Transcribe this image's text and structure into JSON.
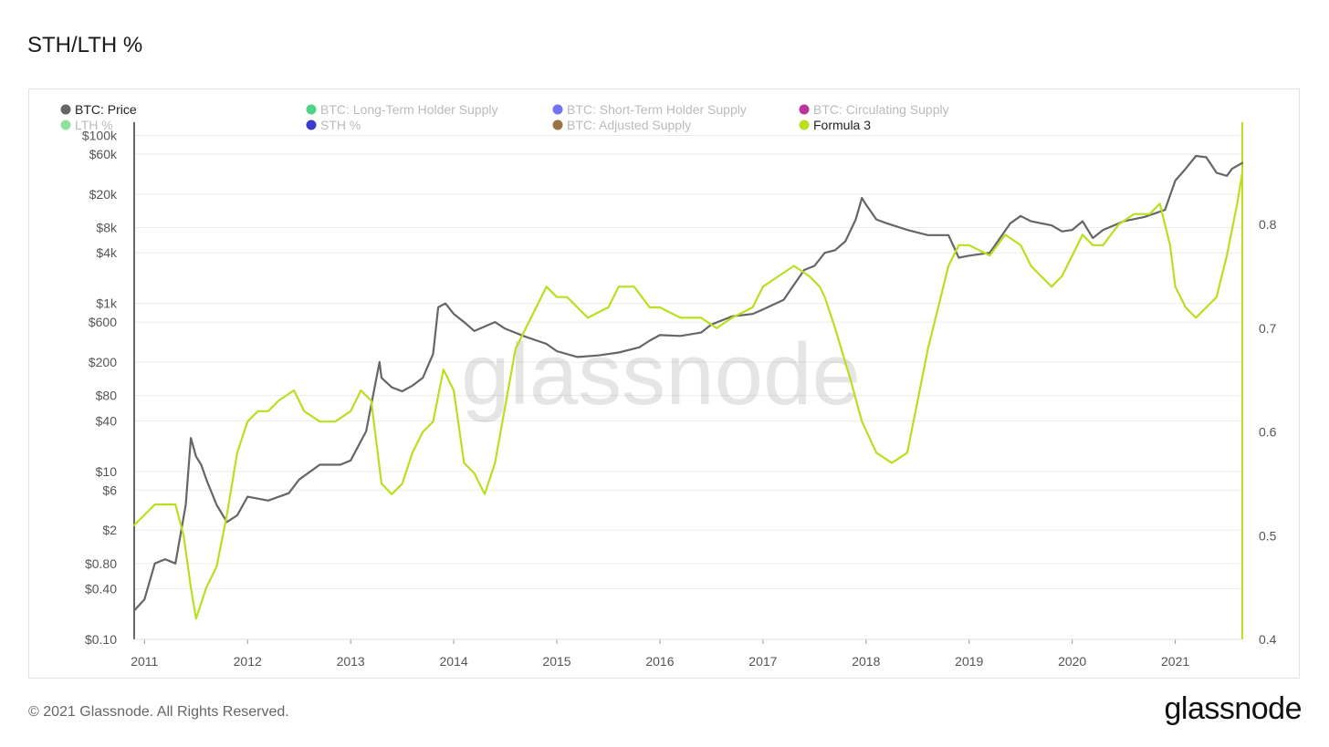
{
  "page": {
    "title": "STH/LTH %",
    "copyright": "© 2021 Glassnode. All Rights Reserved.",
    "logo_text": "glassnode",
    "watermark": "glassnode"
  },
  "chart_data": {
    "type": "line",
    "title": "STH/LTH %",
    "legend": {
      "placement": "top",
      "items": [
        {
          "label": "BTC: Price",
          "color": "#666666",
          "active": true
        },
        {
          "label": "BTC: Long-Term Holder Supply",
          "color": "#2ecc71",
          "active": false
        },
        {
          "label": "BTC: Short-Term Holder Supply",
          "color": "#5b5bf0",
          "active": false
        },
        {
          "label": "BTC: Circulating Supply",
          "color": "#b0108a",
          "active": false
        },
        {
          "label": "LTH %",
          "color": "#7ddc8a",
          "active": false
        },
        {
          "label": "STH %",
          "color": "#1a1ac8",
          "active": false
        },
        {
          "label": "BTC: Adjusted Supply",
          "color": "#8a5a1e",
          "active": false
        },
        {
          "label": "Formula 3",
          "color": "#b8e01f",
          "active": true
        }
      ]
    },
    "x_axis": {
      "ticks": [
        "2011",
        "2012",
        "2013",
        "2014",
        "2015",
        "2016",
        "2017",
        "2018",
        "2019",
        "2020",
        "2021"
      ],
      "range": [
        2010.9,
        2021.65
      ]
    },
    "y_left": {
      "scale": "log",
      "range": [
        0.1,
        130000
      ],
      "tick_values": [
        0.1,
        0.4,
        0.8,
        2,
        6,
        10,
        40,
        80,
        200,
        600,
        1000,
        4000,
        8000,
        20000,
        60000,
        100000
      ],
      "tick_labels": [
        "$0.10",
        "$0.40",
        "$0.80",
        "$2",
        "$6",
        "$10",
        "$40",
        "$80",
        "$200",
        "$600",
        "$1k",
        "$4k",
        "$8k",
        "$20k",
        "$60k",
        "$100k"
      ]
    },
    "y_right": {
      "scale": "linear",
      "range": [
        0.4,
        0.895
      ],
      "tick_values": [
        0.4,
        0.5,
        0.6,
        0.7,
        0.8
      ],
      "tick_labels": [
        "0.4",
        "0.5",
        "0.6",
        "0.7",
        "0.8"
      ]
    },
    "grid": true,
    "series": [
      {
        "name": "BTC: Price",
        "axis": "left",
        "color": "#666666",
        "x": [
          2010.9,
          2011.0,
          2011.1,
          2011.2,
          2011.3,
          2011.4,
          2011.45,
          2011.5,
          2011.55,
          2011.6,
          2011.7,
          2011.8,
          2011.9,
          2012.0,
          2012.2,
          2012.4,
          2012.5,
          2012.7,
          2012.9,
          2013.0,
          2013.15,
          2013.28,
          2013.3,
          2013.4,
          2013.5,
          2013.6,
          2013.7,
          2013.8,
          2013.85,
          2013.92,
          2014.0,
          2014.1,
          2014.2,
          2014.4,
          2014.5,
          2014.7,
          2014.9,
          2015.0,
          2015.2,
          2015.4,
          2015.6,
          2015.8,
          2015.9,
          2016.0,
          2016.2,
          2016.4,
          2016.5,
          2016.7,
          2016.9,
          2017.0,
          2017.2,
          2017.4,
          2017.5,
          2017.6,
          2017.7,
          2017.8,
          2017.9,
          2017.96,
          2018.0,
          2018.1,
          2018.2,
          2018.4,
          2018.6,
          2018.8,
          2018.9,
          2019.0,
          2019.2,
          2019.4,
          2019.5,
          2019.6,
          2019.8,
          2019.9,
          2020.0,
          2020.1,
          2020.2,
          2020.3,
          2020.5,
          2020.7,
          2020.9,
          2021.0,
          2021.1,
          2021.2,
          2021.3,
          2021.4,
          2021.5,
          2021.55,
          2021.65
        ],
        "y": [
          0.22,
          0.3,
          0.8,
          0.9,
          0.8,
          4,
          25,
          15,
          12,
          8,
          4,
          2.5,
          3,
          5,
          4.5,
          5.5,
          8,
          12,
          12,
          13.5,
          30,
          200,
          130,
          100,
          90,
          105,
          130,
          250,
          900,
          1000,
          750,
          600,
          470,
          600,
          500,
          400,
          330,
          270,
          230,
          240,
          260,
          300,
          360,
          420,
          410,
          450,
          560,
          700,
          750,
          850,
          1100,
          2500,
          2800,
          4000,
          4300,
          5500,
          10000,
          18000,
          15000,
          10000,
          9000,
          7500,
          6500,
          6500,
          3500,
          3700,
          4000,
          9000,
          11000,
          9500,
          8500,
          7200,
          7500,
          9500,
          6000,
          7500,
          9500,
          10700,
          13000,
          29000,
          40000,
          57000,
          55000,
          36000,
          33000,
          40000,
          47000
        ]
      },
      {
        "name": "Formula 3",
        "axis": "right",
        "color": "#b8e01f",
        "x": [
          2010.9,
          2011.0,
          2011.1,
          2011.2,
          2011.3,
          2011.38,
          2011.45,
          2011.5,
          2011.6,
          2011.7,
          2011.8,
          2011.9,
          2012.0,
          2012.1,
          2012.2,
          2012.3,
          2012.45,
          2012.55,
          2012.7,
          2012.85,
          2013.0,
          2013.1,
          2013.2,
          2013.3,
          2013.4,
          2013.5,
          2013.6,
          2013.7,
          2013.8,
          2013.9,
          2014.0,
          2014.1,
          2014.2,
          2014.3,
          2014.4,
          2014.6,
          2014.8,
          2014.9,
          2015.0,
          2015.1,
          2015.3,
          2015.5,
          2015.6,
          2015.75,
          2015.9,
          2016.0,
          2016.2,
          2016.4,
          2016.55,
          2016.7,
          2016.9,
          2017.0,
          2017.15,
          2017.3,
          2017.45,
          2017.55,
          2017.6,
          2017.7,
          2017.85,
          2017.96,
          2018.1,
          2018.25,
          2018.4,
          2018.5,
          2018.6,
          2018.8,
          2018.9,
          2019.0,
          2019.2,
          2019.35,
          2019.5,
          2019.6,
          2019.8,
          2019.9,
          2020.0,
          2020.1,
          2020.2,
          2020.3,
          2020.45,
          2020.6,
          2020.75,
          2020.85,
          2020.9,
          2020.95,
          2021.0,
          2021.1,
          2021.2,
          2021.3,
          2021.4,
          2021.5,
          2021.6,
          2021.65
        ],
        "y": [
          0.51,
          0.52,
          0.53,
          0.53,
          0.53,
          0.5,
          0.45,
          0.42,
          0.45,
          0.47,
          0.52,
          0.58,
          0.61,
          0.62,
          0.62,
          0.63,
          0.64,
          0.62,
          0.61,
          0.61,
          0.62,
          0.64,
          0.63,
          0.55,
          0.54,
          0.55,
          0.58,
          0.6,
          0.61,
          0.66,
          0.64,
          0.57,
          0.56,
          0.54,
          0.57,
          0.68,
          0.72,
          0.74,
          0.73,
          0.73,
          0.71,
          0.72,
          0.74,
          0.74,
          0.72,
          0.72,
          0.71,
          0.71,
          0.7,
          0.71,
          0.72,
          0.74,
          0.75,
          0.76,
          0.75,
          0.74,
          0.73,
          0.7,
          0.65,
          0.61,
          0.58,
          0.57,
          0.58,
          0.63,
          0.68,
          0.76,
          0.78,
          0.78,
          0.77,
          0.79,
          0.78,
          0.76,
          0.74,
          0.75,
          0.77,
          0.79,
          0.78,
          0.78,
          0.8,
          0.81,
          0.81,
          0.82,
          0.8,
          0.78,
          0.74,
          0.72,
          0.71,
          0.72,
          0.73,
          0.77,
          0.82,
          0.85
        ]
      }
    ]
  }
}
